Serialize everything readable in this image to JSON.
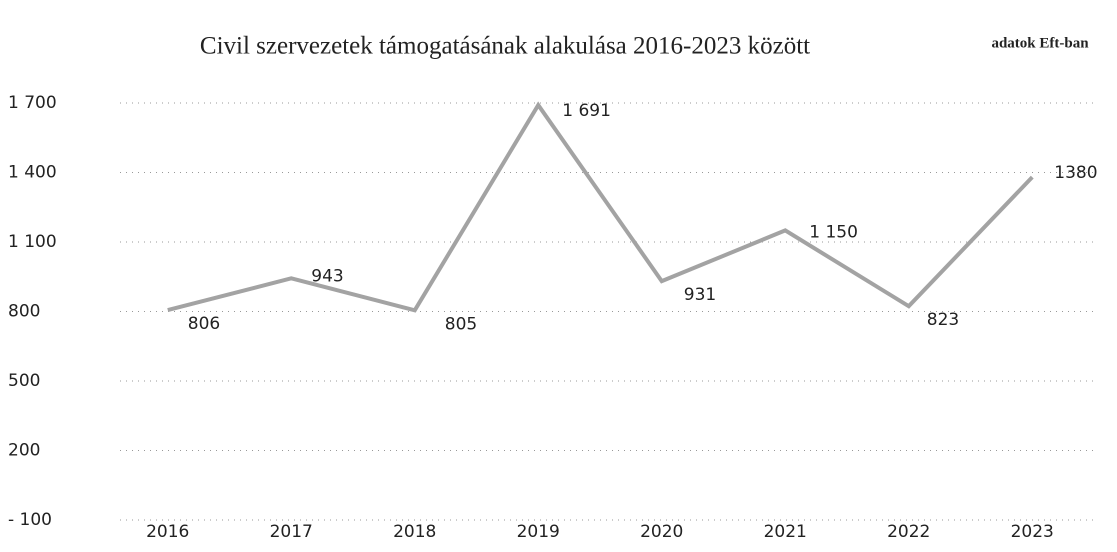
{
  "chart_data": {
    "type": "line",
    "title": "Civil szervezetek támogatásának alakulása 2016-2023  között",
    "annotation": "adatok Eft-ban",
    "categories": [
      "2016",
      "2017",
      "2018",
      "2019",
      "2020",
      "2021",
      "2022",
      "2023"
    ],
    "series": [
      {
        "name": "Támogatás",
        "color": "#a3a3a3",
        "values": [
          806,
          943,
          805,
          1691,
          931,
          1150,
          823,
          1380
        ],
        "value_labels": [
          "806",
          "943",
          "805",
          "1 691",
          "931",
          "1 150",
          "823",
          "1380"
        ]
      }
    ],
    "ylim": [
      -100,
      1700
    ],
    "yticks": [
      {
        "value": -100,
        "label": "- 100"
      },
      200,
      500,
      800,
      {
        "value": 1100,
        "label": "1 100"
      },
      {
        "value": 1400,
        "label": "1 400"
      },
      {
        "value": 1700,
        "label": "1 700"
      }
    ],
    "grid": true
  }
}
